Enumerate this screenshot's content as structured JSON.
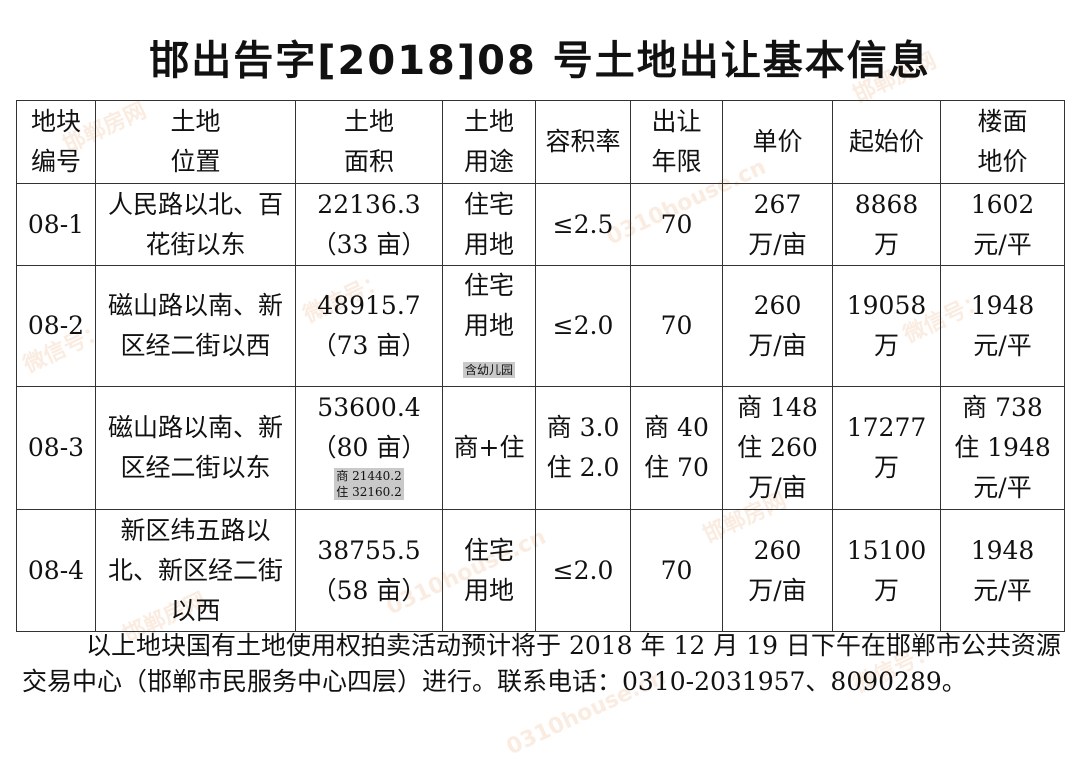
{
  "title": "邯出告字[2018]08 号土地出让基本信息",
  "watermark": [
    "邯郸房网",
    "微信号：",
    "0310house.cn"
  ],
  "table": {
    "headers": [
      [
        "地块",
        "编号"
      ],
      [
        "土地",
        "位置"
      ],
      [
        "土地",
        "面积"
      ],
      [
        "土地",
        "用途"
      ],
      [
        "容积率"
      ],
      [
        "出让",
        "年限"
      ],
      [
        "单价"
      ],
      [
        "起始价"
      ],
      [
        "楼面",
        "地价"
      ]
    ],
    "rows": [
      {
        "id": "08-1",
        "location": [
          "人民路以北、百",
          "花街以东"
        ],
        "area": [
          "22136.3",
          "（33 亩）"
        ],
        "area_note": [],
        "use": [
          "住宅",
          "用地"
        ],
        "use_note": "",
        "far": [
          "≤2.5"
        ],
        "term": [
          "70"
        ],
        "unit_price": [
          "267",
          "万/亩"
        ],
        "start_price": [
          "8868",
          "万"
        ],
        "floor_price": [
          "1602",
          "元/平"
        ]
      },
      {
        "id": "08-2",
        "location": [
          "磁山路以南、新",
          "区经二街以西"
        ],
        "area": [
          "48915.7",
          "（73 亩）"
        ],
        "area_note": [],
        "use": [
          "住宅",
          "用地"
        ],
        "use_note": "含幼儿园",
        "far": [
          "≤2.0"
        ],
        "term": [
          "70"
        ],
        "unit_price": [
          "260",
          "万/亩"
        ],
        "start_price": [
          "19058",
          "万"
        ],
        "floor_price": [
          "1948",
          "元/平"
        ]
      },
      {
        "id": "08-3",
        "location": [
          "磁山路以南、新",
          "区经二街以东"
        ],
        "area": [
          "53600.4",
          "（80 亩）"
        ],
        "area_note": [
          "商 21440.2",
          "住 32160.2"
        ],
        "use": [
          "商+住"
        ],
        "use_note": "",
        "far": [
          "商 3.0",
          "住 2.0"
        ],
        "term": [
          "商 40",
          "住 70"
        ],
        "unit_price": [
          "商 148",
          "住 260",
          "万/亩"
        ],
        "start_price": [
          "17277",
          "万"
        ],
        "floor_price": [
          "商 738",
          "住 1948",
          "元/平"
        ]
      },
      {
        "id": "08-4",
        "location": [
          "新区纬五路以",
          "北、新区经二街",
          "以西"
        ],
        "area": [
          "38755.5",
          "（58 亩）"
        ],
        "area_note": [],
        "use": [
          "住宅",
          "用地"
        ],
        "use_note": "",
        "far": [
          "≤2.0"
        ],
        "term": [
          "70"
        ],
        "unit_price": [
          "260",
          "万/亩"
        ],
        "start_price": [
          "15100",
          "万"
        ],
        "floor_price": [
          "1948",
          "元/平"
        ]
      }
    ]
  },
  "footer": [
    "以上地块国有土地使用权拍卖活动预计将于 2018 年 12 月 19 日下午在邯郸市公共资源交易中心（邯郸市民服务中心四层）进行。联系电话：0310-2031957、8090289。"
  ]
}
